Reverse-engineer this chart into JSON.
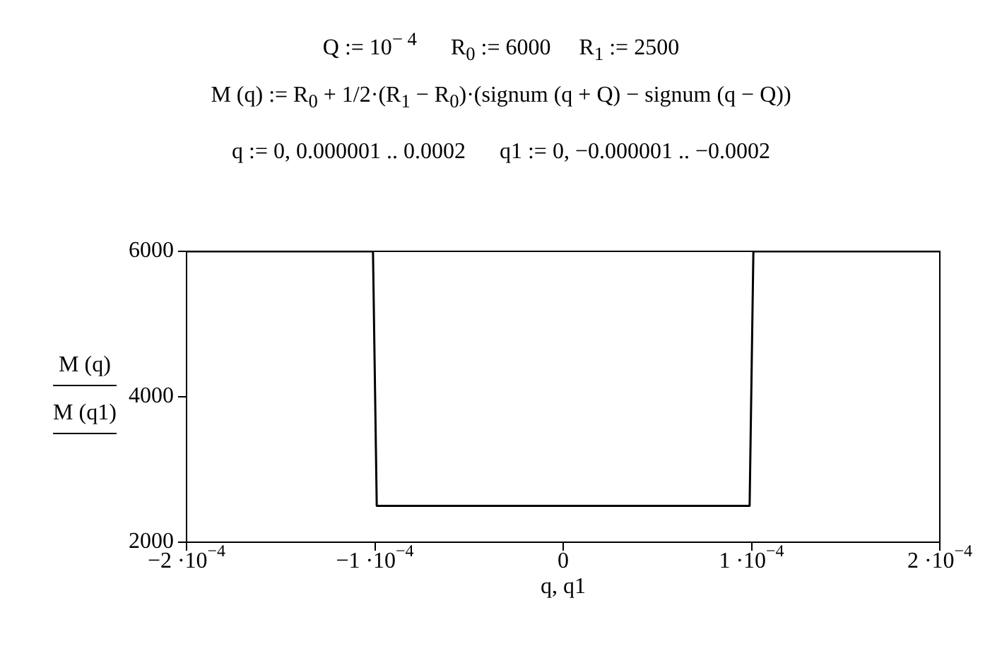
{
  "chart_data": {
    "type": "line",
    "annotations": [
      "Q := 10$^{− 4}$      R$_{0}$ := 6000     R$_{1}$ := 2500",
      "M (q) := R$_{0}$ + 1/2·(R$_{1}$ − R$_{0}$)·(signum (q + Q) − signum (q − Q))",
      "q := 0, 0.000001 .. 0.0002      q1 := 0, −0.000001 .. −0.0002"
    ],
    "xlabel": "q, q1",
    "ylabel": "M (q)\nM (q1)",
    "series": [
      {
        "color": "#000000",
        "x": [
          -0.0002,
          -0.000101,
          -0.0001,
          -9.9e-05,
          0,
          9.9e-05,
          0.0001,
          0.000101,
          0.0002
        ],
        "values": [
          6000,
          6000,
          4250,
          2500,
          2500,
          2500,
          4250,
          6000,
          6000
        ]
      }
    ],
    "xlim": [
      -0.0002,
      0.0002
    ],
    "xticks": [
      {
        "value": -0.0002,
        "label": "−2 ·10$^{−4}$"
      },
      {
        "value": -0.0001,
        "label": "−1 ·10$^{−4}$"
      },
      0,
      {
        "value": 0.0001,
        "label": "1 ·10$^{−4}$"
      },
      {
        "value": 0.0002,
        "label": "2 ·10$^{−4}$"
      }
    ],
    "ylim": [
      2000,
      6000
    ],
    "yticks": [
      2000,
      4000,
      6000
    ],
    "grid": false,
    "legend": false,
    "marker": "none",
    "line_style": "solid"
  }
}
